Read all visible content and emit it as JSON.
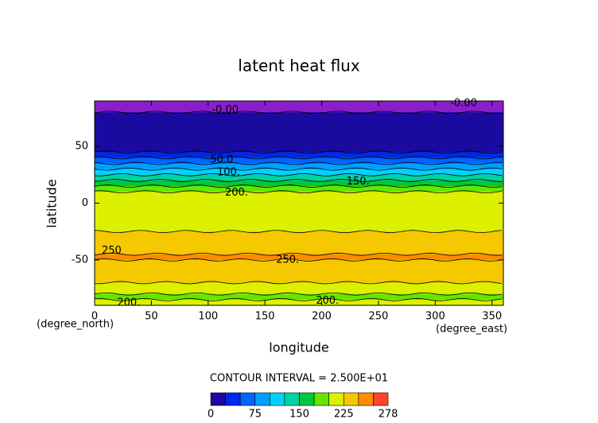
{
  "chart_data": {
    "type": "contour",
    "title": "latent heat flux",
    "xlabel": "longitude",
    "ylabel": "latitude",
    "xunit": "(degree_east)",
    "yunit": "(degree_north)",
    "xlim": [
      0,
      360
    ],
    "ylim": [
      -90,
      90
    ],
    "xticks": [
      0,
      50,
      100,
      150,
      200,
      250,
      300,
      350
    ],
    "yticks": [
      -50,
      0,
      50
    ],
    "lat": [
      87.5,
      82.5,
      77.5,
      72.5,
      67.5,
      62.5,
      57.5,
      52.5,
      47.5,
      42.5,
      37.5,
      32.5,
      27.5,
      22.5,
      17.5,
      12.5,
      7.5,
      2.5,
      -2.5,
      -7.5,
      -12.5,
      -17.5,
      -22.5,
      -27.5,
      -32.5,
      -37.5,
      -42.5,
      -47.5,
      -52.5,
      -57.5,
      -62.5,
      -67.5,
      -72.5,
      -77.5,
      -82.5,
      -87.5
    ],
    "values": [
      -5,
      -2,
      10,
      10,
      10,
      10,
      10,
      10,
      10,
      30,
      55,
      80,
      105,
      130,
      160,
      185,
      205,
      215,
      210,
      205,
      200,
      215,
      220,
      230,
      240,
      245,
      245,
      250,
      245,
      235,
      225,
      230,
      215,
      205,
      195,
      205
    ],
    "levels": [
      0,
      25,
      50,
      75,
      100,
      125,
      150,
      175,
      200,
      225,
      250,
      275,
      278
    ],
    "colors": [
      "#1a0aa0",
      "#0028e6",
      "#0064ff",
      "#00a0ff",
      "#00d2ff",
      "#00d2a0",
      "#00c83c",
      "#64e600",
      "#dcf000",
      "#f5c800",
      "#ff8c00",
      "#ff4628"
    ],
    "under_color": "#8a1ec8",
    "contour_interval_label": "CONTOUR INTERVAL = 2.500E+01",
    "colorbar_ticks": [
      0,
      75,
      150,
      225,
      278
    ],
    "contour_labels": [
      {
        "text": "-0.00",
        "x": 325,
        "y": 88
      },
      {
        "text": "-0.00",
        "x": 115,
        "y": 82
      },
      {
        "text": "50.0",
        "x": 112,
        "y": 38
      },
      {
        "text": "100.",
        "x": 118,
        "y": 27
      },
      {
        "text": "150.",
        "x": 232,
        "y": 19
      },
      {
        "text": "200.",
        "x": 125,
        "y": 9
      },
      {
        "text": "250",
        "x": 15,
        "y": -42
      },
      {
        "text": "250.",
        "x": 170,
        "y": -50
      },
      {
        "text": "200.",
        "x": 30,
        "y": -88
      },
      {
        "text": "200.",
        "x": 205,
        "y": -86
      }
    ]
  }
}
